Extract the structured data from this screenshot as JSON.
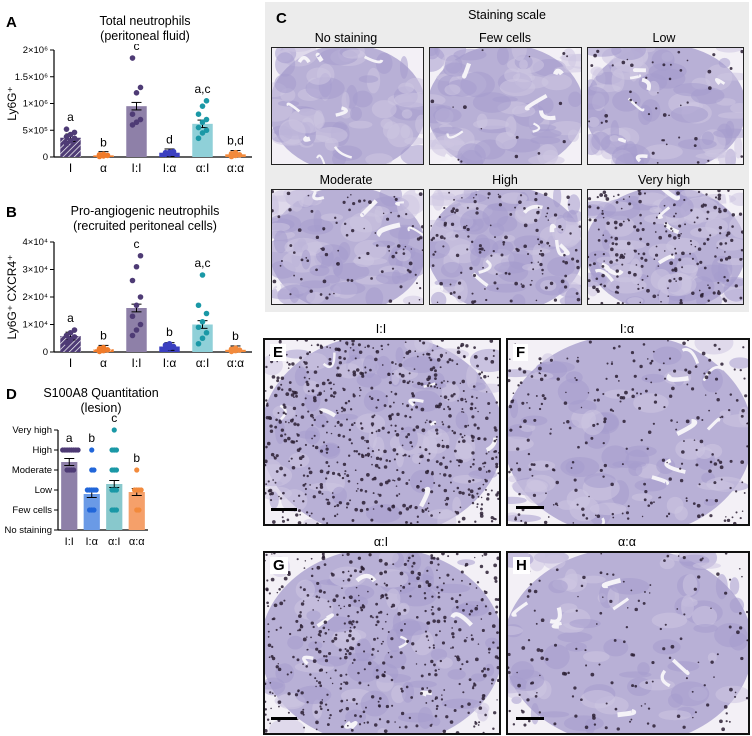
{
  "panels": {
    "A": {
      "letter": "A",
      "title_line1": "Total neutrophils",
      "title_line2": "(peritoneal fluid)",
      "ylabel": "Ly6G⁺"
    },
    "B": {
      "letter": "B",
      "title_line1": "Pro-angiogenic neutrophils",
      "title_line2": "(recruited peritoneal cells)",
      "ylabel": "Ly6G⁺ CXCR4⁺"
    },
    "C": {
      "letter": "C",
      "title": "Staining scale",
      "thumbs": [
        "No staining",
        "Few cells",
        "Low",
        "Moderate",
        "High",
        "Very high"
      ]
    },
    "D": {
      "letter": "D",
      "title_line1": "S100A8 Quantitation",
      "title_line2": "(lesion)"
    },
    "E": {
      "letter": "E",
      "title": "I:I"
    },
    "F": {
      "letter": "F",
      "title": "I:α"
    },
    "G": {
      "letter": "G",
      "title": "α:I"
    },
    "H": {
      "letter": "H",
      "title": "α:α"
    }
  },
  "colors": {
    "I": "#4e3b75",
    "alpha": "#f07b2a",
    "II": "#8e80a8",
    "Ialpha": "#3b3fc0",
    "alphaI": "#1a98a6",
    "alphaalpha": "#f28a3c"
  },
  "chart_data": [
    {
      "id": "A",
      "type": "bar",
      "categories": [
        "I",
        "α",
        "I:I",
        "I:α",
        "α:I",
        "α:α"
      ],
      "values": [
        360000,
        30000,
        950000,
        80000,
        620000,
        50000
      ],
      "ylim": [
        0,
        2000000
      ],
      "yticks": [
        "0",
        "5×10⁵",
        "1×10⁶",
        "1.5×10⁶",
        "2×10⁶"
      ],
      "letters": [
        "a",
        "b",
        "c",
        "d",
        "a,c",
        "b,d"
      ],
      "points": [
        [
          250000,
          300000,
          350000,
          380000,
          420000,
          460000,
          520000
        ],
        [
          10000,
          20000,
          30000,
          40000,
          50000
        ],
        [
          600000,
          650000,
          700000,
          800000,
          1200000,
          1300000,
          1850000
        ],
        [
          50000,
          60000,
          70000,
          80000,
          90000,
          100000
        ],
        [
          350000,
          450000,
          500000,
          550000,
          650000,
          700000,
          800000,
          950000,
          1050000
        ],
        [
          10000,
          30000,
          40000,
          60000,
          80000
        ]
      ]
    },
    {
      "id": "B",
      "type": "bar",
      "categories": [
        "I",
        "α",
        "I:I",
        "I:α",
        "α:I",
        "α:α"
      ],
      "values": [
        5800,
        1000,
        16000,
        2000,
        10000,
        800
      ],
      "ylim": [
        0,
        40000
      ],
      "yticks": [
        "0",
        "1×10⁴",
        "2×10⁴",
        "3×10⁴",
        "4×10⁴"
      ],
      "letters": [
        "a",
        "b",
        "c",
        "b",
        "a,c",
        "b"
      ],
      "points": [
        [
          3500,
          4500,
          5500,
          6000,
          7000,
          8000
        ],
        [
          200,
          500,
          800,
          1200,
          1600
        ],
        [
          6000,
          8000,
          10000,
          13000,
          17000,
          20000,
          26000,
          31000,
          35000
        ],
        [
          1000,
          1500,
          2000,
          2500,
          3000
        ],
        [
          3000,
          5000,
          7000,
          9000,
          11000,
          14000,
          17000,
          28000
        ],
        [
          200,
          500,
          700,
          1000,
          1400
        ]
      ]
    },
    {
      "id": "D",
      "type": "bar",
      "categories": [
        "I:I",
        "I:α",
        "α:I",
        "α:α"
      ],
      "values": [
        3.4,
        1.8,
        2.3,
        1.9
      ],
      "ylim": [
        0,
        5
      ],
      "yticks": [
        "No staining",
        "Few cells",
        "Low",
        "Moderate",
        "High",
        "Very high"
      ],
      "letters": [
        "a",
        "b",
        "c",
        "b"
      ],
      "points": [
        [
          3,
          3,
          3,
          3,
          4,
          4,
          4,
          4,
          4,
          4,
          4,
          4
        ],
        [
          1,
          1,
          1,
          2,
          2,
          2,
          2,
          2,
          3,
          3,
          4
        ],
        [
          1,
          1,
          1,
          2,
          2,
          2,
          3,
          3,
          3,
          4,
          4,
          4,
          5
        ],
        [
          1,
          1,
          2,
          2,
          2,
          2,
          3
        ]
      ]
    }
  ]
}
